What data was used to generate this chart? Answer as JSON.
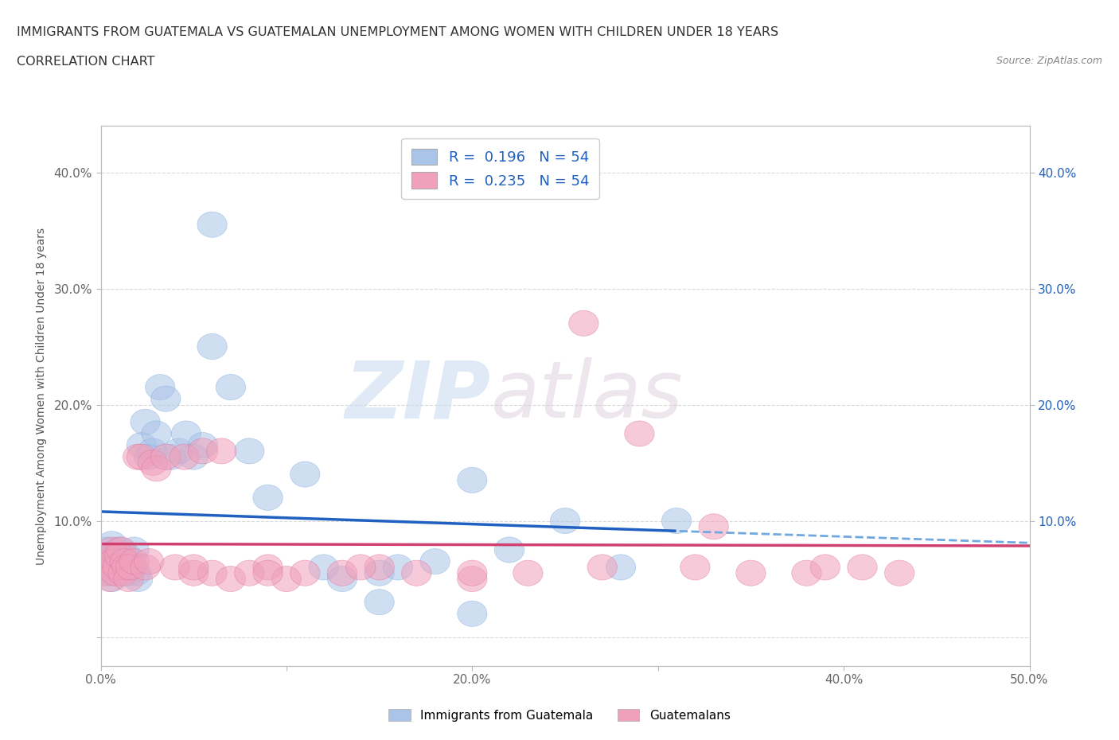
{
  "title_line1": "IMMIGRANTS FROM GUATEMALA VS GUATEMALAN UNEMPLOYMENT AMONG WOMEN WITH CHILDREN UNDER 18 YEARS",
  "title_line2": "CORRELATION CHART",
  "source": "Source: ZipAtlas.com",
  "ylabel": "Unemployment Among Women with Children Under 18 years",
  "xlim": [
    0.0,
    0.5
  ],
  "ylim": [
    -0.025,
    0.44
  ],
  "xticks": [
    0.0,
    0.1,
    0.2,
    0.3,
    0.4,
    0.5
  ],
  "xticklabels": [
    "0.0%",
    "",
    "20.0%",
    "",
    "40.0%",
    "50.0%"
  ],
  "yticks": [
    0.0,
    0.1,
    0.2,
    0.3,
    0.4
  ],
  "yticklabels": [
    "",
    "10.0%",
    "20.0%",
    "30.0%",
    "40.0%"
  ],
  "right_yticks": [
    0.1,
    0.2,
    0.3,
    0.4
  ],
  "right_yticklabels": [
    "10.0%",
    "20.0%",
    "30.0%",
    "40.0%"
  ],
  "watermark_zip": "ZIP",
  "watermark_atlas": "atlas",
  "legend_label1": "Immigrants from Guatemala",
  "legend_label2": "Guatemalans",
  "series1_color": "#aac4e8",
  "series2_color": "#f0a0bb",
  "series1_edge": "#7aacde",
  "series2_edge": "#e070a0",
  "line1_color_solid": "#2060c0",
  "line1_color_dashed": "#70a8e0",
  "line2_color": "#d04070",
  "R1": 0.196,
  "R2": 0.235,
  "N": 54,
  "legend_patch1_color": "#aac4e8",
  "legend_patch2_color": "#f0a0bb",
  "legend_text_color": "#2060c0",
  "background_color": "#ffffff",
  "grid_color": "#d0d0d0",
  "title_color": "#333333",
  "axis_color": "#bbbbbb",
  "series1_x": [
    0.002,
    0.003,
    0.004,
    0.005,
    0.005,
    0.006,
    0.006,
    0.007,
    0.007,
    0.008,
    0.008,
    0.009,
    0.01,
    0.011,
    0.012,
    0.012,
    0.013,
    0.014,
    0.015,
    0.016,
    0.017,
    0.018,
    0.019,
    0.02,
    0.022,
    0.024,
    0.026,
    0.028,
    0.03,
    0.032,
    0.035,
    0.038,
    0.042,
    0.046,
    0.05,
    0.055,
    0.06,
    0.07,
    0.08,
    0.09,
    0.11,
    0.12,
    0.13,
    0.15,
    0.16,
    0.18,
    0.2,
    0.22,
    0.25,
    0.28,
    0.06,
    0.15,
    0.2,
    0.31
  ],
  "series1_y": [
    0.07,
    0.075,
    0.06,
    0.065,
    0.055,
    0.08,
    0.05,
    0.07,
    0.06,
    0.055,
    0.065,
    0.07,
    0.075,
    0.06,
    0.055,
    0.065,
    0.06,
    0.07,
    0.055,
    0.065,
    0.06,
    0.075,
    0.055,
    0.05,
    0.165,
    0.185,
    0.155,
    0.16,
    0.175,
    0.215,
    0.205,
    0.155,
    0.16,
    0.175,
    0.155,
    0.165,
    0.25,
    0.215,
    0.16,
    0.12,
    0.14,
    0.06,
    0.05,
    0.055,
    0.06,
    0.065,
    0.135,
    0.075,
    0.1,
    0.06,
    0.355,
    0.03,
    0.02,
    0.1
  ],
  "series2_x": [
    0.002,
    0.003,
    0.004,
    0.005,
    0.005,
    0.006,
    0.007,
    0.008,
    0.009,
    0.01,
    0.011,
    0.012,
    0.013,
    0.014,
    0.015,
    0.016,
    0.018,
    0.02,
    0.022,
    0.024,
    0.026,
    0.028,
    0.03,
    0.035,
    0.04,
    0.045,
    0.05,
    0.055,
    0.06,
    0.065,
    0.07,
    0.08,
    0.09,
    0.1,
    0.11,
    0.13,
    0.15,
    0.17,
    0.2,
    0.23,
    0.26,
    0.29,
    0.32,
    0.35,
    0.38,
    0.41,
    0.05,
    0.09,
    0.14,
    0.2,
    0.27,
    0.33,
    0.39,
    0.43
  ],
  "series2_y": [
    0.055,
    0.065,
    0.07,
    0.06,
    0.05,
    0.075,
    0.065,
    0.055,
    0.06,
    0.07,
    0.075,
    0.055,
    0.065,
    0.06,
    0.05,
    0.06,
    0.065,
    0.155,
    0.155,
    0.06,
    0.065,
    0.15,
    0.145,
    0.155,
    0.06,
    0.155,
    0.055,
    0.16,
    0.055,
    0.16,
    0.05,
    0.055,
    0.06,
    0.05,
    0.055,
    0.055,
    0.06,
    0.055,
    0.05,
    0.055,
    0.27,
    0.175,
    0.06,
    0.055,
    0.055,
    0.06,
    0.06,
    0.055,
    0.06,
    0.055,
    0.06,
    0.095,
    0.06,
    0.055
  ],
  "line1_solid_xmax": 0.31,
  "line1_dashed_xmin": 0.31
}
